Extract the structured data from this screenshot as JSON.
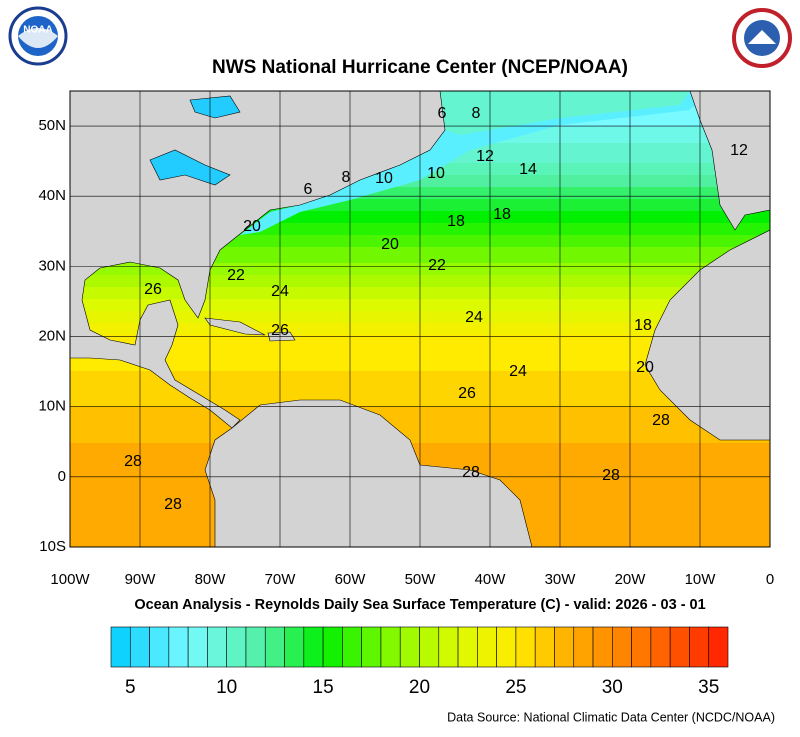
{
  "map": {
    "title": "NWS National Hurricane Center (NCEP/NOAA)",
    "subtitle": "Ocean Analysis - Reynolds Daily Sea Surface Temperature (C) - valid: 2026 - 03 - 01",
    "source": "Data Source: National Climatic Data Center (NCDC/NOAA)",
    "logo_left": "NOAA",
    "xlim": [
      -100,
      0
    ],
    "ylim": [
      -10,
      55
    ],
    "xticks": [
      {
        "value": -100,
        "label": "100W"
      },
      {
        "value": -90,
        "label": "90W"
      },
      {
        "value": -80,
        "label": "80W"
      },
      {
        "value": -70,
        "label": "70W"
      },
      {
        "value": -60,
        "label": "60W"
      },
      {
        "value": -50,
        "label": "50W"
      },
      {
        "value": -40,
        "label": "40W"
      },
      {
        "value": -30,
        "label": "30W"
      },
      {
        "value": -20,
        "label": "20W"
      },
      {
        "value": -10,
        "label": "10W"
      },
      0
    ],
    "yticks": [
      {
        "value": -10,
        "label": "10S"
      },
      0,
      {
        "value": 10,
        "label": "10N"
      },
      {
        "value": 20,
        "label": "20N"
      },
      {
        "value": 30,
        "label": "30N"
      },
      {
        "value": 40,
        "label": "40N"
      },
      {
        "value": 50,
        "label": "50N"
      }
    ],
    "grid": true,
    "colorbar": {
      "lim": [
        4,
        36
      ],
      "ticks": [
        5,
        10,
        15,
        20,
        25,
        30,
        35
      ]
    },
    "contour_labels": [
      6,
      8,
      12,
      14,
      12,
      6,
      8,
      10,
      10,
      20,
      18,
      18,
      20,
      22,
      22,
      26,
      24,
      26,
      24,
      24,
      26,
      18,
      20,
      28,
      28,
      28,
      28,
      28
    ]
  }
}
